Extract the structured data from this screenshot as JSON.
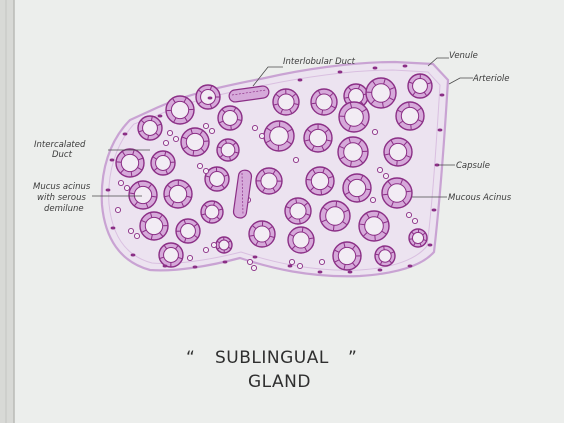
{
  "labels": {
    "interlobular_duct": "Interlobular Duct",
    "venule": "Venule",
    "arteriole": "Arteriole",
    "intercalated_duct_line1": "Intercalated",
    "intercalated_duct_line2": "Duct",
    "capsule": "Capsule",
    "mucus_acinus_line1": "Mucus acinus",
    "mucus_acinus_line2": "with serous",
    "mucus_acinus_line3": "demilune",
    "mucous_acinus": "Mucous Acinus"
  },
  "title": {
    "open_quote": "“",
    "line1": "SUBLINGUAL",
    "close_quote": "”",
    "line2": "GLAND"
  },
  "colors": {
    "paper": "#eceeec",
    "tissue_fill": "#ece3f0",
    "tissue_outline": "#c9a3d3",
    "acinus_stroke": "#8b2f86",
    "acinus_fill": "#d6a9da",
    "lumen": "#f2ecf4"
  }
}
